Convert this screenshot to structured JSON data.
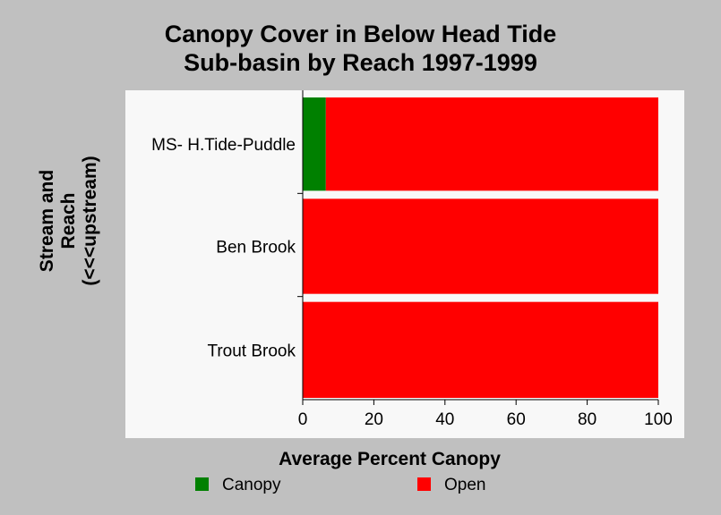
{
  "chart_data": {
    "type": "bar",
    "orientation": "horizontal",
    "stacked": true,
    "title_lines": [
      "Canopy Cover in Below Head Tide",
      "Sub-basin by Reach 1997-1999"
    ],
    "xlabel": "Average Percent Canopy",
    "ylabel_lines": [
      "Stream and",
      "Reach",
      "(<<<upstream)"
    ],
    "categories": [
      "MS- H.Tide-Puddle",
      "Ben Brook",
      "Trout Brook"
    ],
    "series": [
      {
        "name": "Canopy",
        "color": "#008000",
        "values": [
          6.5,
          0,
          0
        ]
      },
      {
        "name": "Open",
        "color": "#ff0000",
        "values": [
          93.5,
          100,
          100
        ]
      }
    ],
    "xlim": [
      0,
      100
    ],
    "xticks": [
      "0",
      "20",
      "40",
      "60",
      "80",
      "100"
    ],
    "grid": false,
    "legend_position": "bottom",
    "plot_background": "#f8f8f8",
    "page_background": "#c0c0c0"
  }
}
